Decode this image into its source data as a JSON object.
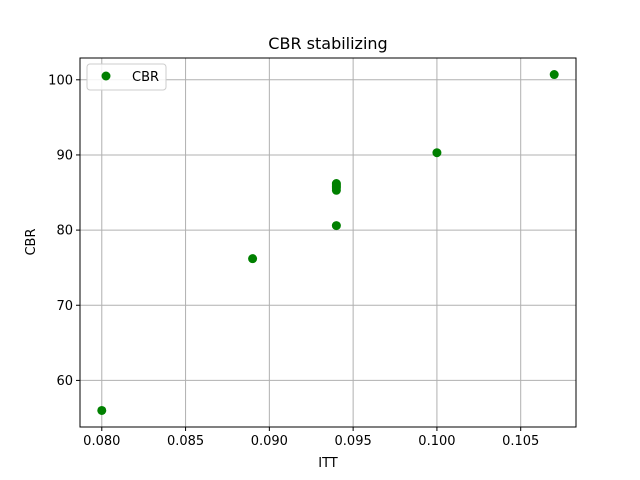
{
  "chart_data": {
    "type": "scatter",
    "title": "CBR stabilizing",
    "xlabel": "ITT",
    "ylabel": "CBR",
    "xlim": [
      0.0787,
      0.1083
    ],
    "ylim": [
      53.8,
      102.9
    ],
    "xticks": [
      0.08,
      0.085,
      0.09,
      0.095,
      0.1,
      0.105
    ],
    "xtick_labels": [
      "0.080",
      "0.085",
      "0.090",
      "0.095",
      "0.100",
      "0.105"
    ],
    "yticks": [
      60,
      70,
      80,
      90,
      100
    ],
    "ytick_labels": [
      "60",
      "70",
      "80",
      "90",
      "100"
    ],
    "grid": true,
    "legend_position": "top-left",
    "series": [
      {
        "name": "CBR",
        "color": "#008000",
        "marker": "circle",
        "x": [
          0.08,
          0.089,
          0.094,
          0.094,
          0.094,
          0.094,
          0.094,
          0.094,
          0.1,
          0.107
        ],
        "y": [
          56.0,
          76.2,
          80.6,
          85.3,
          85.6,
          85.8,
          86.0,
          86.2,
          90.3,
          100.7
        ]
      }
    ]
  }
}
